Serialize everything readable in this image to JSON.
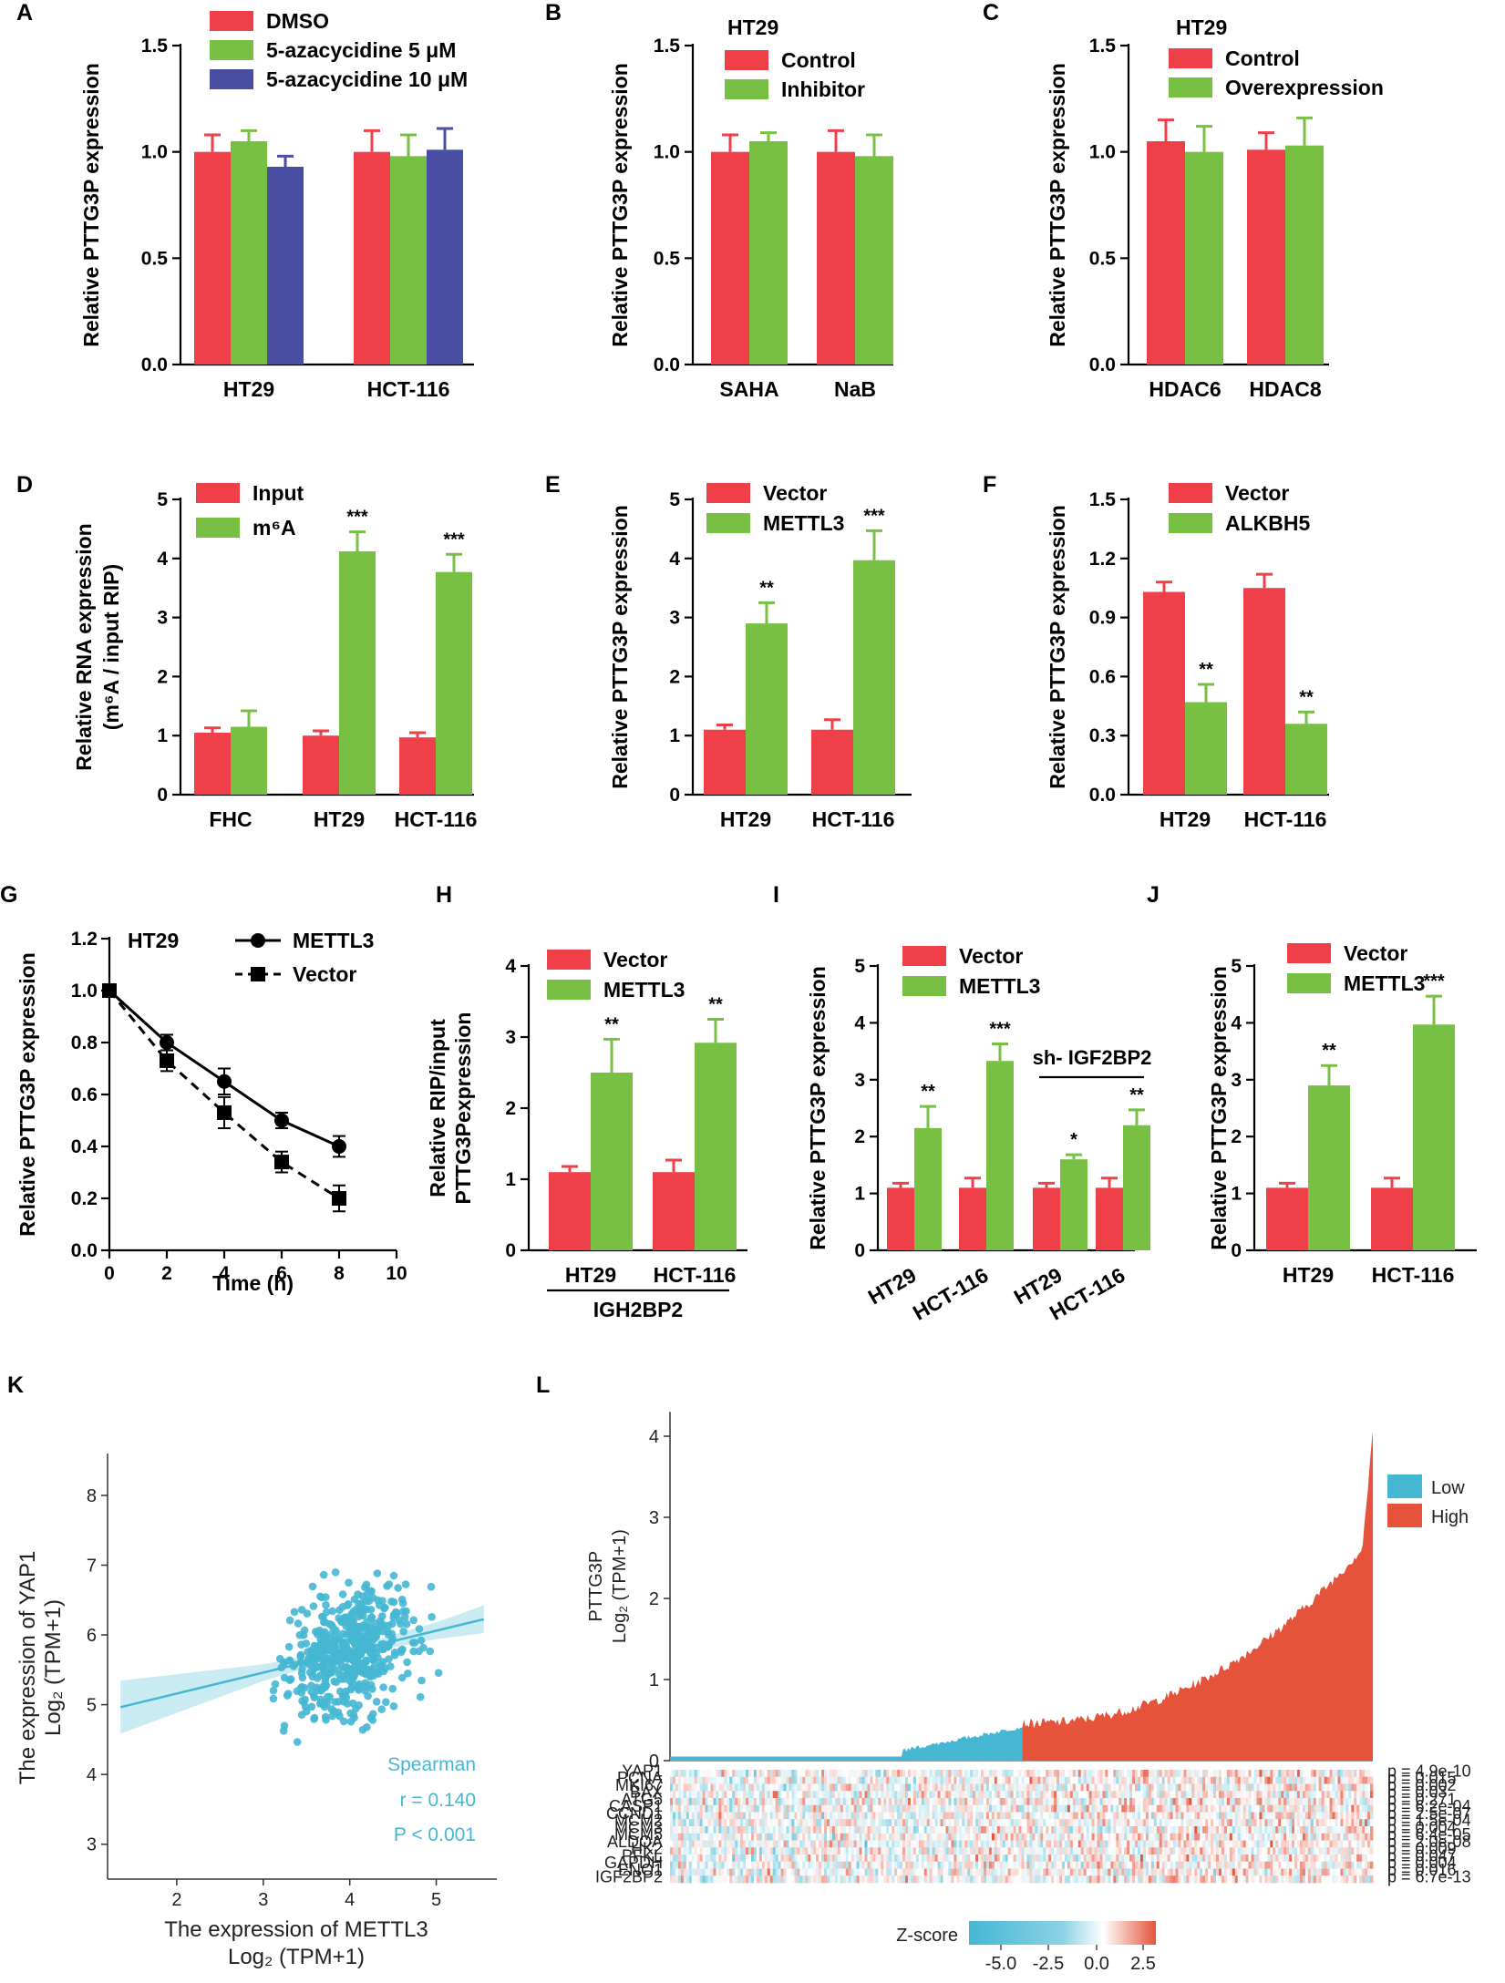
{
  "colors": {
    "red": "#ef3f48",
    "green": "#78c043",
    "blue": "#4a4ea3",
    "teal": "#46b7d3",
    "high": "#e5533b"
  },
  "chart_data": [
    {
      "panel": "A",
      "type": "bar",
      "title": "",
      "ylabel": "Relative PTTG3P expression",
      "ylim": [
        0,
        1.5
      ],
      "yticks": [
        "0.0",
        "0.5",
        "1.0",
        "1.5"
      ],
      "categories": [
        "HT29",
        "HCT-116"
      ],
      "series": [
        {
          "name": "DMSO",
          "color": "red",
          "values": [
            1.0,
            1.0
          ],
          "err": [
            0.08,
            0.1
          ]
        },
        {
          "name": "5-azacycidine 5 μM",
          "color": "green",
          "values": [
            1.05,
            0.98
          ],
          "err": [
            0.05,
            0.1
          ]
        },
        {
          "name": "5-azacycidine 10 μM",
          "color": "blue",
          "values": [
            0.93,
            1.01
          ],
          "err": [
            0.05,
            0.1
          ]
        }
      ],
      "sig": []
    },
    {
      "panel": "B",
      "type": "bar",
      "title": "HT29",
      "ylabel": "Relative PTTG3P expression",
      "ylim": [
        0,
        1.5
      ],
      "yticks": [
        "0.0",
        "0.5",
        "1.0",
        "1.5"
      ],
      "categories": [
        "SAHA",
        "NaB"
      ],
      "series": [
        {
          "name": "Control",
          "color": "red",
          "values": [
            1.0,
            1.0
          ],
          "err": [
            0.08,
            0.1
          ]
        },
        {
          "name": "Inhibitor",
          "color": "green",
          "values": [
            1.05,
            0.98
          ],
          "err": [
            0.04,
            0.1
          ]
        }
      ],
      "sig": []
    },
    {
      "panel": "C",
      "type": "bar",
      "title": "HT29",
      "ylabel": "Relative PTTG3P expression",
      "ylim": [
        0,
        1.5
      ],
      "yticks": [
        "0.0",
        "0.5",
        "1.0",
        "1.5"
      ],
      "categories": [
        "HDAC6",
        "HDAC8"
      ],
      "series": [
        {
          "name": "Control",
          "color": "red",
          "values": [
            1.05,
            1.01
          ],
          "err": [
            0.1,
            0.08
          ]
        },
        {
          "name": "Overexpression",
          "color": "green",
          "values": [
            1.0,
            1.03
          ],
          "err": [
            0.12,
            0.13
          ]
        }
      ],
      "sig": []
    },
    {
      "panel": "D",
      "type": "bar",
      "title": "",
      "ylabel": "Relative RNA expression",
      "ylabel2": "(m⁶A / input RIP)",
      "ylim": [
        0,
        5
      ],
      "yticks": [
        "0",
        "1",
        "2",
        "3",
        "4",
        "5"
      ],
      "categories": [
        "FHC",
        "HT29",
        "HCT-116"
      ],
      "series": [
        {
          "name": "Input",
          "color": "red",
          "values": [
            1.05,
            1.0,
            0.97
          ],
          "err": [
            0.08,
            0.08,
            0.08
          ]
        },
        {
          "name": "m⁶A",
          "color": "green",
          "values": [
            1.15,
            4.12,
            3.77
          ],
          "err": [
            0.27,
            0.33,
            0.3
          ]
        }
      ],
      "sig": [
        [
          "",
          "",
          ""
        ],
        [
          "",
          "***",
          "***"
        ]
      ]
    },
    {
      "panel": "E",
      "type": "bar",
      "title": "",
      "ylabel": "Relative PTTG3P expression",
      "ylim": [
        0,
        5
      ],
      "yticks": [
        "0",
        "1",
        "2",
        "3",
        "4",
        "5"
      ],
      "categories": [
        "HT29",
        "HCT-116"
      ],
      "series": [
        {
          "name": "Vector",
          "color": "red",
          "values": [
            1.1,
            1.1
          ],
          "err": [
            0.08,
            0.17
          ]
        },
        {
          "name": "METTL3",
          "color": "green",
          "values": [
            2.9,
            3.97
          ],
          "err": [
            0.35,
            0.5
          ]
        }
      ],
      "sig": [
        [
          "",
          ""
        ],
        [
          "**",
          "***"
        ]
      ]
    },
    {
      "panel": "F",
      "type": "bar",
      "title": "",
      "ylabel": "Relative PTTG3P expression",
      "ylim": [
        0,
        1.5
      ],
      "yticks": [
        "0.0",
        "0.3",
        "0.6",
        "0.9",
        "1.2",
        "1.5"
      ],
      "categories": [
        "HT29",
        "HCT-116"
      ],
      "series": [
        {
          "name": "Vector",
          "color": "red",
          "values": [
            1.03,
            1.05
          ],
          "err": [
            0.05,
            0.07
          ]
        },
        {
          "name": "ALKBH5",
          "color": "green",
          "values": [
            0.47,
            0.36
          ],
          "err": [
            0.09,
            0.06
          ]
        }
      ],
      "sig": [
        [
          "",
          ""
        ],
        [
          "**",
          "**"
        ]
      ]
    },
    {
      "panel": "G",
      "type": "line",
      "title": "HT29",
      "xlabel": "Time (h)",
      "ylabel": "Relative PTTG3P expression",
      "xlim": [
        0,
        10
      ],
      "ylim": [
        0,
        1.2
      ],
      "xticks": [
        "0",
        "2",
        "4",
        "6",
        "8",
        "10"
      ],
      "yticks": [
        "0.0",
        "0.2",
        "0.4",
        "0.6",
        "0.8",
        "1.0",
        "1.2"
      ],
      "series": [
        {
          "name": "METTL3",
          "marker": "circle",
          "dash": false,
          "x": [
            0,
            2,
            4,
            6,
            8
          ],
          "y": [
            1.0,
            0.8,
            0.65,
            0.5,
            0.4
          ],
          "err": [
            0,
            0.03,
            0.05,
            0.03,
            0.04
          ]
        },
        {
          "name": "Vector",
          "marker": "square",
          "dash": true,
          "x": [
            0,
            2,
            4,
            6,
            8
          ],
          "y": [
            1.0,
            0.73,
            0.53,
            0.34,
            0.2
          ],
          "err": [
            0,
            0.04,
            0.06,
            0.04,
            0.05
          ]
        }
      ]
    },
    {
      "panel": "H",
      "type": "bar",
      "title": "",
      "ylabel": "Relative RIP/input",
      "ylabel2": "PTTG3Pexpression",
      "ylim": [
        0,
        4
      ],
      "yticks": [
        "0",
        "1",
        "2",
        "3",
        "4"
      ],
      "categories": [
        "HT29",
        "HCT-116"
      ],
      "group_label": "IGH2BP2",
      "series": [
        {
          "name": "Vector",
          "color": "red",
          "values": [
            1.1,
            1.1
          ],
          "err": [
            0.08,
            0.17
          ]
        },
        {
          "name": "METTL3",
          "color": "green",
          "values": [
            2.5,
            2.92
          ],
          "err": [
            0.47,
            0.33
          ]
        }
      ],
      "sig": [
        [
          "",
          ""
        ],
        [
          "**",
          "**"
        ]
      ]
    },
    {
      "panel": "I",
      "type": "bar",
      "title": "",
      "ylabel": "Relative PTTG3P expression",
      "ylim": [
        0,
        5
      ],
      "yticks": [
        "0",
        "1",
        "2",
        "3",
        "4",
        "5"
      ],
      "categories": [
        "HT29",
        "HCT-116",
        "HT29",
        "HCT-116"
      ],
      "bracket_label": "sh- IGF2BP2",
      "series": [
        {
          "name": "Vector",
          "color": "red",
          "values": [
            1.1,
            1.1,
            1.1,
            1.1
          ],
          "err": [
            0.08,
            0.17,
            0.08,
            0.17
          ]
        },
        {
          "name": "METTL3",
          "color": "green",
          "values": [
            2.15,
            3.33,
            1.6,
            2.2
          ],
          "err": [
            0.38,
            0.3,
            0.08,
            0.27
          ]
        }
      ],
      "sig": [
        [
          "",
          "",
          "",
          ""
        ],
        [
          "**",
          "***",
          "*",
          "**"
        ]
      ]
    },
    {
      "panel": "J",
      "type": "bar",
      "title": "",
      "ylabel": "Relative PTTG3P expression",
      "ylim": [
        0,
        5
      ],
      "yticks": [
        "0",
        "1",
        "2",
        "3",
        "4",
        "5"
      ],
      "categories": [
        "HT29",
        "HCT-116"
      ],
      "series": [
        {
          "name": "Vector",
          "color": "red",
          "values": [
            1.1,
            1.1
          ],
          "err": [
            0.08,
            0.17
          ]
        },
        {
          "name": "METTL3",
          "color": "green",
          "values": [
            2.9,
            3.97
          ],
          "err": [
            0.35,
            0.5
          ]
        }
      ],
      "sig": [
        [
          "",
          ""
        ],
        [
          "**",
          "***"
        ]
      ]
    },
    {
      "panel": "K",
      "type": "scatter",
      "xlabel": "The expression of METTL3",
      "xlabel2": "Log₂ (TPM+1)",
      "ylabel": "The expression of YAP1",
      "ylabel2": "Log₂ (TPM+1)",
      "xlim": [
        1.2,
        5.7
      ],
      "ylim": [
        2.5,
        8.6
      ],
      "xticks": [
        "2",
        "3",
        "4",
        "5"
      ],
      "yticks": [
        "3",
        "4",
        "5",
        "6",
        "7",
        "8"
      ],
      "n_points": 520,
      "fit": {
        "intercept": 4.56,
        "slope": 0.3
      },
      "annotations": {
        "method": "Spearman",
        "r": "r = 0.140",
        "p": "P < 0.001"
      }
    },
    {
      "panel": "L",
      "type": "heatmap",
      "ylabel": "PTTG3P",
      "ylabel2": "Log₂ (TPM+1)",
      "yticks": [
        "0",
        "1",
        "2",
        "3",
        "4"
      ],
      "legend": [
        {
          "label": "Low",
          "color": "teal"
        },
        {
          "label": "High",
          "color": "high"
        }
      ],
      "genes": [
        "YAP1",
        "PCNA",
        "MKI67",
        "BAX",
        "ATG5",
        "CASP1",
        "CCND1",
        "MCM2",
        "MCM3",
        "MCM5",
        "ALDOA",
        "HK2",
        "PFKL",
        "GAPDH",
        "ENO1",
        "IGF2BP2"
      ],
      "pvalues": [
        "p = 4.9e-10",
        "p = 0.015",
        "p = 0.002",
        "p = 0.03",
        "p = 0.271",
        "p = 6.2e-04",
        "p = 2.5e-07",
        "p = 1.5e-04",
        "p = 0.004",
        "p = 6.4e-05",
        "p = 2.0e-08",
        "p = 0.009",
        "p = 0.047",
        "p = 0.004",
        "p = 0.016",
        "p = 6.7e-13"
      ],
      "zscore_label": "Z-score",
      "zscore_ticks": [
        "-5.0",
        "-2.5",
        "0.0",
        "2.5"
      ]
    }
  ]
}
